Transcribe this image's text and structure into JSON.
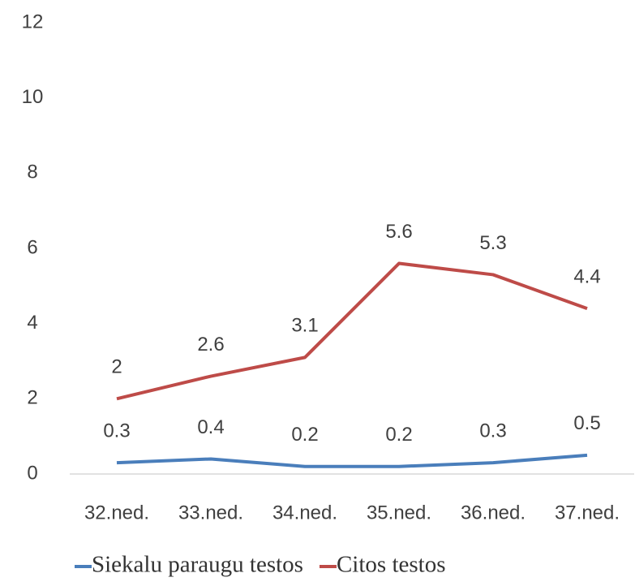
{
  "chart_data": {
    "type": "line",
    "categories": [
      "32.ned.",
      "33.ned.",
      "34.ned.",
      "35.ned.",
      "36.ned.",
      "37.ned."
    ],
    "series": [
      {
        "name": "Siekalu paraugu testos",
        "color": "#4a7ebb",
        "values": [
          0.3,
          0.4,
          0.2,
          0.2,
          0.3,
          0.5
        ]
      },
      {
        "name": "Citos testos",
        "color": "#be4b48",
        "values": [
          2,
          2.6,
          3.1,
          5.6,
          5.3,
          4.4
        ]
      }
    ],
    "ylim": [
      0,
      12
    ],
    "yticks": [
      0,
      2,
      4,
      6,
      8,
      10,
      12
    ],
    "grid": false,
    "legend": "bottom"
  }
}
